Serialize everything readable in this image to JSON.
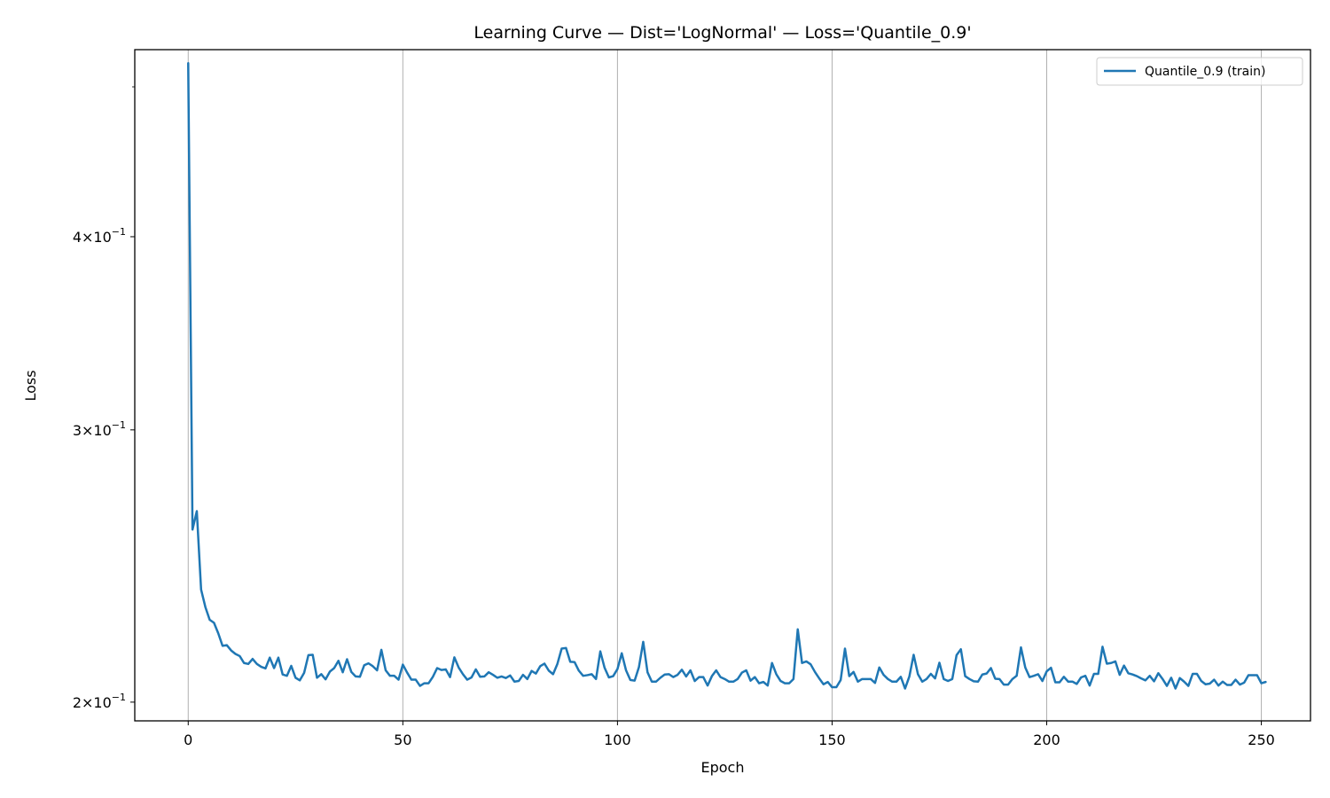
{
  "chart_data": {
    "type": "line",
    "title": "Learning Curve — Dist='LogNormal' — Loss='Quantile_0.9'",
    "xlabel": "Epoch",
    "ylabel": "Loss",
    "xlim": [
      -12.45,
      261.45
    ],
    "ylim": [
      0.1945,
      0.5285
    ],
    "yscale": "log",
    "grid": "x-major",
    "legend_position": "top-right",
    "x_ticks": [
      0,
      50,
      100,
      150,
      200,
      250
    ],
    "x_tick_labels": [
      "0",
      "50",
      "100",
      "150",
      "200",
      "250"
    ],
    "y_ticks": [
      0.2,
      0.3,
      0.4
    ],
    "y_tick_labels": [
      {
        "mantissa": "2",
        "exp": "−1"
      },
      {
        "mantissa": "3",
        "exp": "−1"
      },
      {
        "mantissa": "4",
        "exp": "−1"
      }
    ],
    "y_minor_ticks": [
      0.5
    ],
    "series": [
      {
        "name": "Quantile_0.9 (train)",
        "color": "#1f77b4",
        "x_start": 0,
        "values": [
          0.518,
          0.2586,
          0.2658,
          0.2365,
          0.2304,
          0.2261,
          0.2251,
          0.2216,
          0.2175,
          0.2177,
          0.216,
          0.2149,
          0.2142,
          0.212,
          0.2117,
          0.2133,
          0.2117,
          0.2108,
          0.2103,
          0.2137,
          0.2104,
          0.2137,
          0.2084,
          0.208,
          0.2111,
          0.2074,
          0.2066,
          0.2089,
          0.2145,
          0.2146,
          0.2074,
          0.2085,
          0.2069,
          0.2093,
          0.2104,
          0.2127,
          0.2091,
          0.2132,
          0.2092,
          0.2078,
          0.2077,
          0.2113,
          0.2119,
          0.211,
          0.2097,
          0.2162,
          0.2097,
          0.208,
          0.208,
          0.2068,
          0.2115,
          0.209,
          0.2068,
          0.2068,
          0.2049,
          0.2057,
          0.2057,
          0.2077,
          0.2104,
          0.2098,
          0.21,
          0.2076,
          0.2138,
          0.2106,
          0.2085,
          0.2068,
          0.2075,
          0.21,
          0.2077,
          0.2078,
          0.2091,
          0.2083,
          0.2074,
          0.2078,
          0.2073,
          0.2081,
          0.2062,
          0.2064,
          0.2083,
          0.207,
          0.2095,
          0.2087,
          0.211,
          0.2118,
          0.2096,
          0.2085,
          0.2117,
          0.2166,
          0.2168,
          0.2124,
          0.2123,
          0.2096,
          0.208,
          0.2082,
          0.2085,
          0.207,
          0.2157,
          0.2105,
          0.2075,
          0.2079,
          0.2101,
          0.2151,
          0.2097,
          0.2067,
          0.2065,
          0.2107,
          0.2188,
          0.2091,
          0.2062,
          0.2062,
          0.2074,
          0.2084,
          0.2085,
          0.2076,
          0.2083,
          0.2099,
          0.2078,
          0.2097,
          0.2064,
          0.2076,
          0.2076,
          0.205,
          0.2079,
          0.2097,
          0.2076,
          0.207,
          0.2062,
          0.2062,
          0.207,
          0.209,
          0.2097,
          0.2065,
          0.2076,
          0.2057,
          0.2061,
          0.205,
          0.212,
          0.2085,
          0.2064,
          0.2057,
          0.2057,
          0.207,
          0.2229,
          0.212,
          0.2125,
          0.2116,
          0.2092,
          0.2072,
          0.2054,
          0.2061,
          0.2045,
          0.2045,
          0.2067,
          0.2166,
          0.2079,
          0.2092,
          0.2062,
          0.207,
          0.207,
          0.207,
          0.2058,
          0.2106,
          0.2083,
          0.207,
          0.2062,
          0.2062,
          0.2077,
          0.2041,
          0.2078,
          0.2146,
          0.2085,
          0.2062,
          0.207,
          0.2086,
          0.2072,
          0.2121,
          0.207,
          0.2064,
          0.207,
          0.2145,
          0.2164,
          0.2079,
          0.207,
          0.2063,
          0.2062,
          0.2084,
          0.2087,
          0.2104,
          0.2071,
          0.207,
          0.2053,
          0.2053,
          0.207,
          0.208,
          0.217,
          0.2106,
          0.2076,
          0.208,
          0.2085,
          0.2064,
          0.2094,
          0.2105,
          0.206,
          0.206,
          0.2077,
          0.2062,
          0.2062,
          0.2055,
          0.2075,
          0.208,
          0.205,
          0.2086,
          0.2086,
          0.2172,
          0.2118,
          0.212,
          0.2125,
          0.2083,
          0.2112,
          0.2088,
          0.2084,
          0.2079,
          0.2072,
          0.2066,
          0.208,
          0.2063,
          0.2088,
          0.207,
          0.2049,
          0.2074,
          0.2041,
          0.2073,
          0.2062,
          0.2049,
          0.2086,
          0.2086,
          0.2064,
          0.2054,
          0.2056,
          0.2068,
          0.205,
          0.2062,
          0.2052,
          0.2052,
          0.2068,
          0.2053,
          0.2059,
          0.2082,
          0.2082,
          0.2082,
          0.2057,
          0.2061
        ]
      }
    ]
  }
}
